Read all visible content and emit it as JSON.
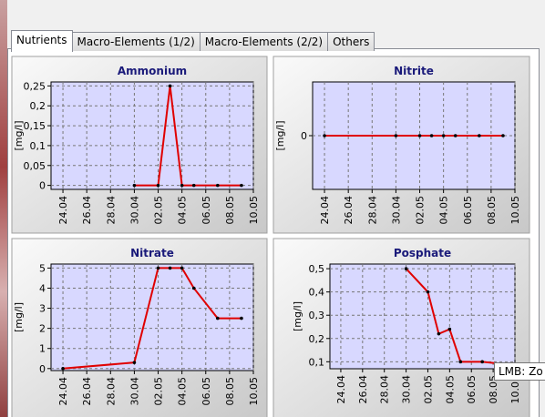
{
  "tabs": [
    "Nutrients",
    "Macro-Elements (1/2)",
    "Macro-Elements (2/2)",
    "Others"
  ],
  "tooltip": "LMB: Zo",
  "chart_data": [
    {
      "type": "line",
      "title": "Ammonium",
      "ylabel": "[mg/l]",
      "color": "#e00000",
      "x": [
        "30.04",
        "02.05",
        "03.05",
        "04.05",
        "05.05",
        "07.05",
        "09.05"
      ],
      "values": [
        0,
        0,
        0.25,
        0,
        0,
        0,
        0
      ],
      "xlim": [
        "23.04",
        "10.05"
      ],
      "xticks": [
        "24.04",
        "26.04",
        "28.04",
        "30.04",
        "02.05",
        "04.05",
        "06.05",
        "08.05",
        "10.05"
      ],
      "ylim": [
        -0.01,
        0.26
      ],
      "yticks": [
        0,
        {
          "value": 0.05,
          "label": "0,05"
        },
        {
          "value": 0.1,
          "label": "0,1"
        },
        {
          "value": 0.15,
          "label": "0,15"
        },
        {
          "value": 0.2,
          "label": "0,2"
        },
        {
          "value": 0.25,
          "label": "0,25"
        }
      ],
      "grid": true
    },
    {
      "type": "line",
      "title": "Nitrite",
      "ylabel": "[mg/l]",
      "color": "#e00000",
      "x": [
        "24.04",
        "30.04",
        "02.05",
        "03.05",
        "04.05",
        "05.05",
        "07.05",
        "09.05"
      ],
      "values": [
        0,
        0,
        0,
        0,
        0,
        0,
        0,
        0
      ],
      "xlim": [
        "23.04",
        "10.05"
      ],
      "xticks": [
        "24.04",
        "26.04",
        "28.04",
        "30.04",
        "02.05",
        "04.05",
        "06.05",
        "08.05",
        "10.05"
      ],
      "ylim": [
        -1,
        1
      ],
      "yticks": [
        0
      ],
      "grid": true
    },
    {
      "type": "line",
      "title": "Nitrate",
      "ylabel": "[mg/l]",
      "color": "#e00000",
      "x": [
        "24.04",
        "30.04",
        "02.05",
        "03.05",
        "04.05",
        "05.05",
        "07.05",
        "09.05"
      ],
      "values": [
        0,
        0.3,
        5,
        5,
        5,
        4,
        2.5,
        2.5
      ],
      "xlim": [
        "23.04",
        "10.05"
      ],
      "xticks": [
        "24.04",
        "26.04",
        "28.04",
        "30.04",
        "02.05",
        "04.05",
        "06.05",
        "08.05",
        "10.05"
      ],
      "ylim": [
        -0.1,
        5.2
      ],
      "yticks": [
        0,
        1,
        2,
        3,
        4,
        5
      ],
      "grid": true
    },
    {
      "type": "line",
      "title": "Posphate",
      "ylabel": "[mg/l]",
      "color": "#e00000",
      "x": [
        "30.04",
        "02.05",
        "03.05",
        "04.05",
        "05.05",
        "07.05",
        "09.05"
      ],
      "values": [
        0.5,
        0.4,
        0.22,
        0.24,
        0.1,
        0.1,
        0.09
      ],
      "xlim": [
        "23.04",
        "10.05"
      ],
      "xticks": [
        "24.04",
        "26.04",
        "28.04",
        "30.04",
        "02.05",
        "04.05",
        "06.05",
        "08.05",
        "10.05"
      ],
      "ylim": [
        0.07,
        0.52
      ],
      "yticks": [
        {
          "value": 0.1,
          "label": "0,1"
        },
        {
          "value": 0.2,
          "label": "0,2"
        },
        {
          "value": 0.3,
          "label": "0,3"
        },
        {
          "value": 0.4,
          "label": "0,4"
        },
        {
          "value": 0.5,
          "label": "0,5"
        }
      ],
      "grid": true
    }
  ]
}
